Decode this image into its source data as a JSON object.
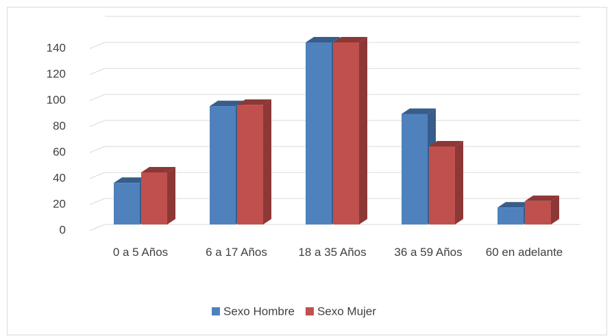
{
  "chart_data": {
    "type": "bar3d",
    "categories": [
      "0 a 5 Años",
      "6 a 17 Años",
      "18 a 35 Años",
      "36 a 59 Años",
      "60 en adelante"
    ],
    "series": [
      {
        "name": "Sexo Hombre",
        "color": "#4f81bd",
        "side": "#385d8a",
        "values": [
          32,
          91,
          140,
          85,
          13
        ]
      },
      {
        "name": "Sexo Mujer",
        "color": "#c0504d",
        "side": "#8c3836",
        "values": [
          40,
          92,
          140,
          60,
          18
        ]
      }
    ],
    "ylim": [
      0,
      160
    ],
    "yticks": [
      0,
      20,
      40,
      60,
      80,
      100,
      120,
      140
    ],
    "grid": true,
    "legend": "bottom"
  }
}
